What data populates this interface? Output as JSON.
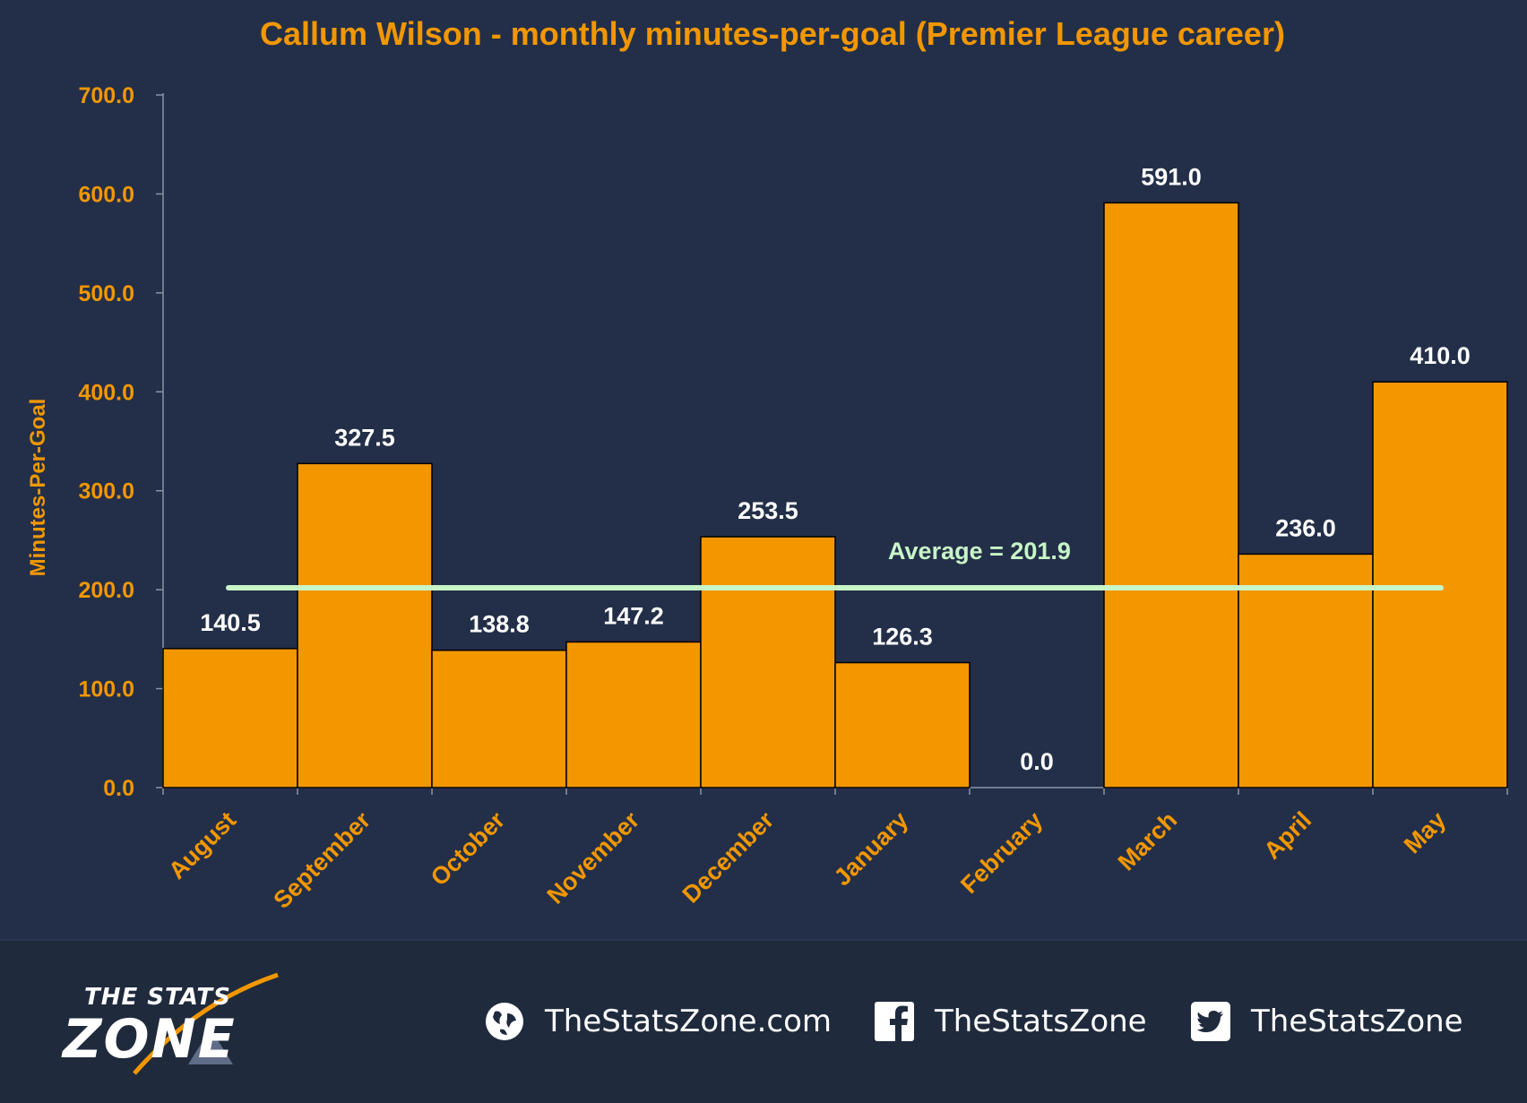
{
  "chart_data": {
    "type": "bar",
    "title": "Callum  Wilson - monthly minutes-per-goal (Premier League career)",
    "ylabel": "Minutes-Per-Goal",
    "xlabel": "",
    "categories": [
      "August",
      "September",
      "October",
      "November",
      "December",
      "January",
      "February",
      "March",
      "April",
      "May"
    ],
    "values": [
      140.5,
      327.5,
      138.8,
      147.2,
      253.5,
      126.3,
      0.0,
      591.0,
      236.0,
      410.0
    ],
    "value_labels": [
      "140.5",
      "327.5",
      "138.8",
      "147.2",
      "253.5",
      "126.3",
      "0.0",
      "591.0",
      "236.0",
      "410.0"
    ],
    "ylim": [
      0,
      700
    ],
    "yticks": [
      0,
      100,
      200,
      300,
      400,
      500,
      600,
      700
    ],
    "ytick_labels": [
      "0.0",
      "100.0",
      "200.0",
      "300.0",
      "400.0",
      "500.0",
      "600.0",
      "700.0"
    ],
    "grid": false,
    "average": {
      "value": 201.9,
      "label": "Average = 201.9"
    },
    "colors": {
      "background": "#232f48",
      "bar": "#f29700",
      "bar_edge": "#000000",
      "accent_text": "#f29700",
      "value_text": "#ffffff",
      "average_line": "#c8f5c8"
    }
  },
  "footer": {
    "website": {
      "icon": "globe-icon",
      "text": "TheStatsZone.com"
    },
    "facebook": {
      "icon": "facebook-icon",
      "text": "TheStatsZone"
    },
    "twitter": {
      "icon": "twitter-icon",
      "text": "TheStatsZone"
    },
    "logo": {
      "top": "THE STATS",
      "bottom": "ZONE"
    }
  }
}
